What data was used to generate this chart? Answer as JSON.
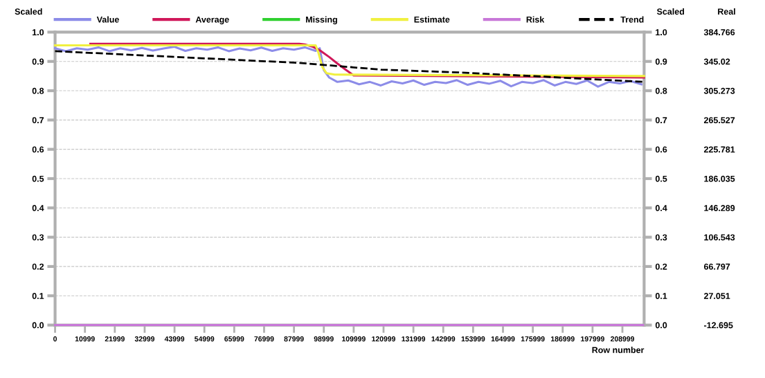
{
  "chart_data": {
    "type": "line",
    "xlabel": "Row number",
    "ylabel": "Scaled",
    "xlim": [
      0,
      217000
    ],
    "xticks": [
      0,
      10999,
      21999,
      32999,
      43999,
      54999,
      65999,
      76999,
      87999,
      98999,
      109999,
      120999,
      131999,
      142999,
      153999,
      164999,
      175999,
      186999,
      197999,
      208999
    ],
    "ylim": [
      0,
      1
    ],
    "yticks": [
      {
        "value": 0,
        "label": "0.0"
      },
      0.1,
      0.2,
      0.3,
      0.4,
      0.5,
      0.6,
      0.7,
      0.8,
      0.9,
      {
        "value": 1,
        "label": "1.0"
      }
    ],
    "y2lim": [
      0,
      1
    ],
    "y2ticks": [
      {
        "value": 0,
        "label": "0.0"
      },
      0.1,
      0.2,
      0.3,
      0.4,
      0.5,
      0.6,
      0.7,
      0.8,
      0.9,
      {
        "value": 1,
        "label": "1.0"
      }
    ],
    "y2label": "Scaled",
    "y3label": "Real",
    "y3lim": [
      -12.695,
      384.766
    ],
    "y3ticks": [
      -12.695,
      27.051,
      66.797,
      106.543,
      146.289,
      186.035,
      225.781,
      265.527,
      305.273,
      345.02,
      384.766
    ],
    "grid": "y",
    "legend": "top",
    "line_style": "solid",
    "series": [
      {
        "name": "Value",
        "color": "#8c8ce8",
        "x": [
          0,
          4000,
          8000,
          12000,
          16000,
          20000,
          24000,
          28000,
          32000,
          36000,
          40000,
          44000,
          48000,
          52000,
          56000,
          60000,
          64000,
          68000,
          72000,
          76000,
          80000,
          84000,
          88000,
          92000,
          96000,
          97500,
          99000,
          101000,
          104000,
          108000,
          112000,
          116000,
          120000,
          124000,
          128000,
          132000,
          136000,
          140000,
          144000,
          148000,
          152000,
          156000,
          160000,
          164000,
          168000,
          172000,
          176000,
          180000,
          184000,
          188000,
          192000,
          196000,
          200000,
          204000,
          208000,
          212000,
          216000
        ],
        "values": [
          0.945,
          0.935,
          0.945,
          0.94,
          0.948,
          0.935,
          0.945,
          0.938,
          0.946,
          0.937,
          0.944,
          0.95,
          0.936,
          0.945,
          0.94,
          0.948,
          0.935,
          0.944,
          0.938,
          0.947,
          0.936,
          0.945,
          0.94,
          0.948,
          0.936,
          0.945,
          0.87,
          0.845,
          0.83,
          0.835,
          0.822,
          0.83,
          0.818,
          0.832,
          0.825,
          0.835,
          0.82,
          0.83,
          0.826,
          0.836,
          0.82,
          0.83,
          0.824,
          0.834,
          0.815,
          0.83,
          0.826,
          0.836,
          0.818,
          0.83,
          0.823,
          0.835,
          0.814,
          0.83,
          0.825,
          0.833,
          0.822
        ]
      },
      {
        "name": "Average",
        "color": "#d0185a",
        "x": [
          13000,
          90000,
          92000,
          95000,
          98000,
          101000,
          104000,
          107000,
          110000,
          217000
        ],
        "values": [
          0.96,
          0.96,
          0.958,
          0.95,
          0.935,
          0.915,
          0.893,
          0.872,
          0.852,
          0.845
        ]
      },
      {
        "name": "Missing",
        "color": "#30d030"
      },
      {
        "name": "Estimate",
        "color": "#f0f040",
        "x": [
          0,
          96000,
          97000,
          98500,
          100000,
          103000,
          217000
        ],
        "values": [
          0.955,
          0.955,
          0.93,
          0.88,
          0.86,
          0.855,
          0.85
        ]
      },
      {
        "name": "Risk",
        "color": "#c878d8",
        "x": [
          0,
          217000
        ],
        "values": [
          0,
          0
        ]
      },
      {
        "name": "Trend",
        "color": "#000000",
        "line_style": "dashed",
        "x": [
          0,
          45000,
          90000,
          120000,
          150000,
          180000,
          217000
        ],
        "values": [
          0.935,
          0.915,
          0.895,
          0.872,
          0.862,
          0.848,
          0.83
        ]
      }
    ]
  }
}
